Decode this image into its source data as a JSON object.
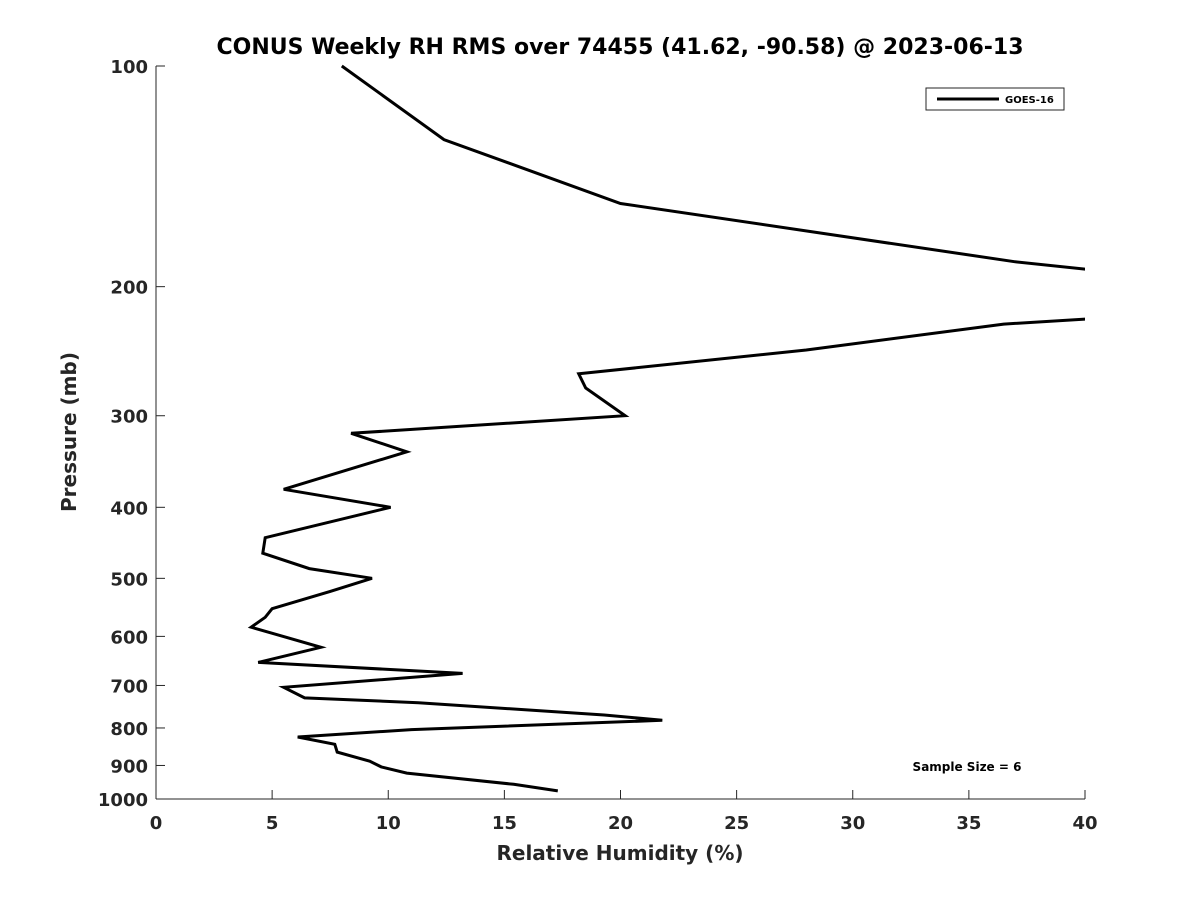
{
  "chart_data": {
    "type": "line",
    "title": "CONUS Weekly RH RMS over 74455 (41.62, -90.58) @ 2023-06-13",
    "xlabel": "Relative Humidity (%)",
    "ylabel": "Pressure (mb)",
    "xlim": [
      0,
      40
    ],
    "ylim": [
      1000,
      100
    ],
    "yscale": "log",
    "x_ticks": [
      "0",
      "5",
      "10",
      "15",
      "20",
      "25",
      "30",
      "35",
      "40"
    ],
    "y_ticks": [
      "100",
      "200",
      "300",
      "400",
      "500",
      "600",
      "700",
      "800",
      "900",
      "1000"
    ],
    "grid": false,
    "legend_position": "top-right",
    "series": [
      {
        "name": "GOES-16",
        "color": "#000000",
        "points": [
          {
            "x": 8.0,
            "y": 100
          },
          {
            "x": 12.4,
            "y": 126
          },
          {
            "x": 20.0,
            "y": 154
          },
          {
            "x": 37.0,
            "y": 185
          },
          {
            "x": 40.5,
            "y": 190
          },
          {
            "x": null,
            "y": null
          },
          {
            "x": 40.5,
            "y": 221
          },
          {
            "x": 36.5,
            "y": 225
          },
          {
            "x": 28.0,
            "y": 244
          },
          {
            "x": 18.2,
            "y": 263
          },
          {
            "x": 18.5,
            "y": 275
          },
          {
            "x": 20.2,
            "y": 300
          },
          {
            "x": 8.4,
            "y": 317
          },
          {
            "x": 10.8,
            "y": 336
          },
          {
            "x": 5.5,
            "y": 378
          },
          {
            "x": 10.1,
            "y": 400
          },
          {
            "x": 4.7,
            "y": 440
          },
          {
            "x": 4.6,
            "y": 462
          },
          {
            "x": 6.6,
            "y": 485
          },
          {
            "x": 9.3,
            "y": 500
          },
          {
            "x": 7.5,
            "y": 521
          },
          {
            "x": 5.0,
            "y": 550
          },
          {
            "x": 4.7,
            "y": 565
          },
          {
            "x": 4.1,
            "y": 583
          },
          {
            "x": 7.1,
            "y": 621
          },
          {
            "x": 4.4,
            "y": 651
          },
          {
            "x": 13.2,
            "y": 674
          },
          {
            "x": 5.5,
            "y": 704
          },
          {
            "x": 6.4,
            "y": 728
          },
          {
            "x": 11.3,
            "y": 739
          },
          {
            "x": 19.3,
            "y": 768
          },
          {
            "x": 21.8,
            "y": 781
          },
          {
            "x": 11.0,
            "y": 804
          },
          {
            "x": 6.1,
            "y": 823
          },
          {
            "x": 7.7,
            "y": 842
          },
          {
            "x": 7.8,
            "y": 863
          },
          {
            "x": 9.2,
            "y": 888
          },
          {
            "x": 9.7,
            "y": 904
          },
          {
            "x": 10.8,
            "y": 922
          },
          {
            "x": 15.4,
            "y": 955
          },
          {
            "x": 17.3,
            "y": 975
          }
        ]
      }
    ],
    "annotations": [
      "Sample Size = 6"
    ]
  }
}
